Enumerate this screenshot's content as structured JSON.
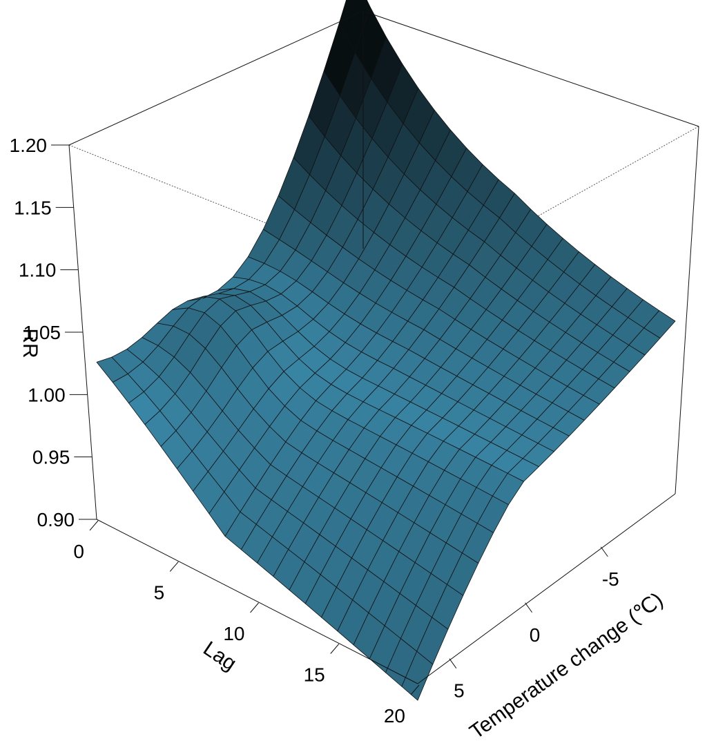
{
  "chart_data": {
    "type": "surface3d",
    "title": "",
    "xlabel": "Lag",
    "ylabel": "Temperature change (℃)",
    "zlabel": "RR",
    "x_ticks": [
      "0",
      "5",
      "10",
      "15",
      "20"
    ],
    "y_ticks": [
      "-5",
      "0",
      "5"
    ],
    "z_ticks": [
      "0.90",
      "0.95",
      "1.00",
      "1.05",
      "1.10",
      "1.15",
      "1.20"
    ],
    "xlim": [
      0,
      20
    ],
    "ylim": [
      -10,
      7
    ],
    "zlim": [
      0.9,
      1.2
    ],
    "surface_color": "#3a88a8",
    "surface_shadow_color": "#041218",
    "grid": {
      "lag": [
        0,
        1,
        2,
        3,
        4,
        5,
        6,
        7,
        8,
        9,
        10,
        11,
        12,
        13,
        14,
        15,
        16,
        17,
        18,
        19,
        20
      ],
      "temperature_change": [
        -10,
        -9,
        -8,
        -7,
        -6,
        -5,
        -4,
        -3,
        -2,
        -1,
        0,
        1,
        2,
        3,
        4,
        5,
        6,
        7
      ]
    },
    "sample_values": [
      {
        "lag": 0,
        "temperature_change": -10,
        "rr": 1.2
      },
      {
        "lag": 5,
        "temperature_change": -10,
        "rr": 1.11
      },
      {
        "lag": 10,
        "temperature_change": -10,
        "rr": 1.05
      },
      {
        "lag": 20,
        "temperature_change": -10,
        "rr": 1.025
      },
      {
        "lag": 0,
        "temperature_change": 0,
        "rr": 1.04
      },
      {
        "lag": 10,
        "temperature_change": 0,
        "rr": 1.0
      },
      {
        "lag": 20,
        "temperature_change": 0,
        "rr": 1.01
      },
      {
        "lag": 0,
        "temperature_change": 7,
        "rr": 1.0
      },
      {
        "lag": 7,
        "temperature_change": 7,
        "rr": 0.955
      },
      {
        "lag": 20,
        "temperature_change": 7,
        "rr": 0.935
      }
    ]
  }
}
